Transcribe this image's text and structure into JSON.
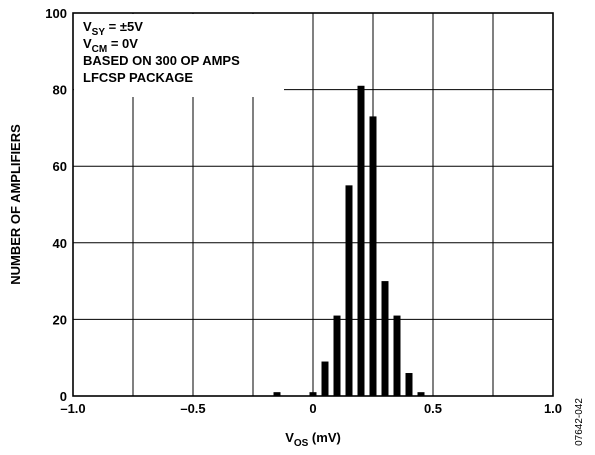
{
  "chart_data": {
    "type": "bar",
    "title": "",
    "xlabel": {
      "main": "V",
      "sub": "OS",
      "unit": " (mV)"
    },
    "ylabel": "NUMBER OF AMPLIFIERS",
    "xlim": [
      -1.0,
      1.0
    ],
    "ylim": [
      0,
      100
    ],
    "xticks": [
      -1.0,
      -0.75,
      -0.5,
      -0.25,
      0,
      0.25,
      0.5,
      0.75,
      1.0
    ],
    "xtick_labels": [
      "–1.0",
      "",
      "–0.5",
      "",
      "0",
      "",
      "0.5",
      "",
      "1.0"
    ],
    "yticks": [
      0,
      20,
      40,
      60,
      80,
      100
    ],
    "ytick_labels": [
      "0",
      "20",
      "40",
      "60",
      "80",
      "100"
    ],
    "grid": true,
    "x": [
      -0.15,
      0,
      0.05,
      0.1,
      0.15,
      0.2,
      0.25,
      0.3,
      0.35,
      0.4,
      0.45
    ],
    "values": [
      1,
      1,
      9,
      21,
      55,
      81,
      73,
      30,
      21,
      6,
      1
    ],
    "legend_lines": [
      {
        "main": "V",
        "sub": "SY",
        "rest": " = ±5V"
      },
      {
        "main": "V",
        "sub": "CM",
        "rest": " = 0V"
      },
      {
        "main": "BASED ON 300 OP AMPS",
        "sub": "",
        "rest": ""
      },
      {
        "main": "LFCSP PACKAGE",
        "sub": "",
        "rest": ""
      }
    ],
    "figure_id": "07642-042"
  }
}
